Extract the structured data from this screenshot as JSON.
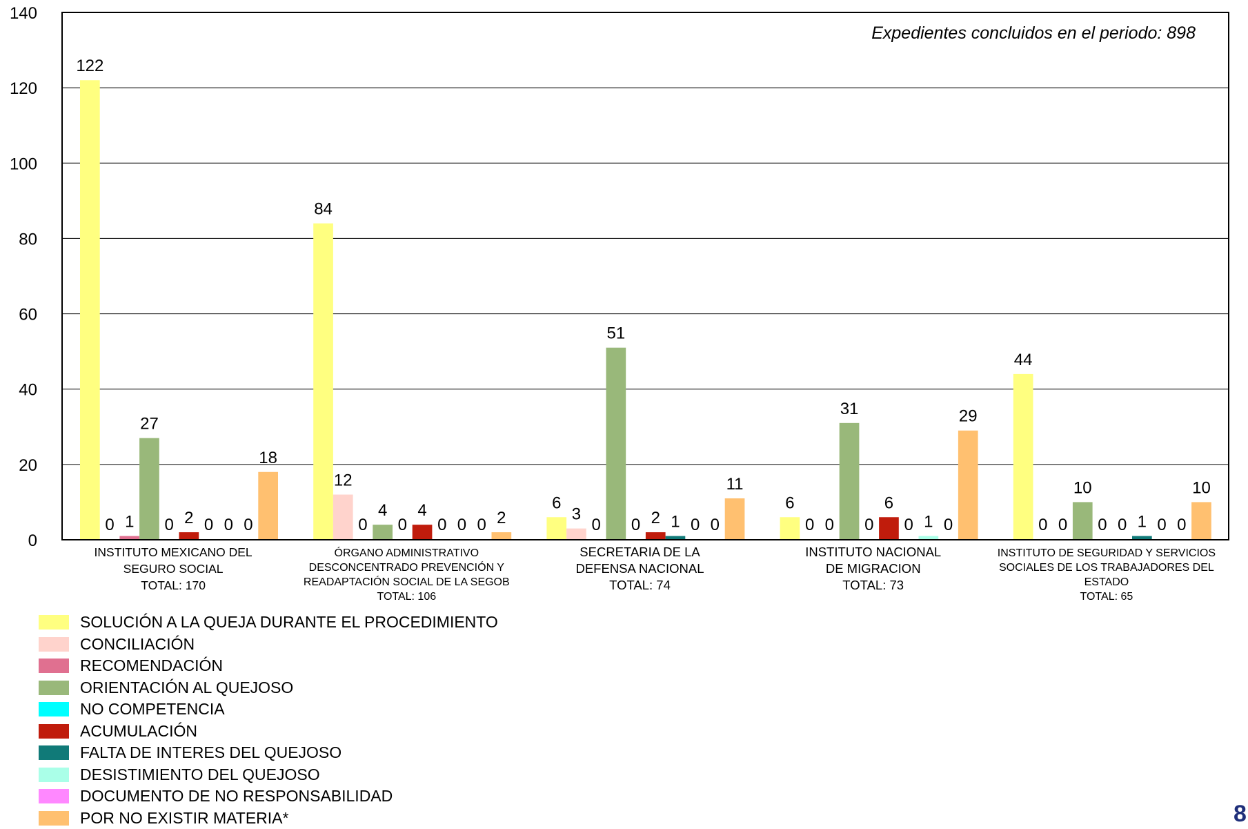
{
  "chart_data": {
    "type": "bar",
    "annotation": "Expedientes concluidos en el periodo:  898",
    "ylim": [
      0,
      140
    ],
    "yticks": [
      0,
      20,
      40,
      60,
      80,
      100,
      120,
      140
    ],
    "grid": true,
    "legend_position": "bottom-left",
    "categories": [
      {
        "lines": [
          "INSTITUTO MEXICANO DEL",
          "SEGURO SOCIAL",
          "TOTAL:  170"
        ]
      },
      {
        "lines": [
          "ÓRGANO ADMINISTRATIVO",
          "DESCONCENTRADO PREVENCIÓN Y",
          "READAPTACIÓN SOCIAL DE LA SEGOB",
          "TOTAL:  106"
        ]
      },
      {
        "lines": [
          "SECRETARIA DE LA",
          "DEFENSA NACIONAL",
          "TOTAL:  74"
        ]
      },
      {
        "lines": [
          "INSTITUTO NACIONAL",
          "DE MIGRACION",
          "TOTAL:  73"
        ]
      },
      {
        "lines": [
          "INSTITUTO DE SEGURIDAD Y SERVICIOS",
          "SOCIALES DE LOS TRABAJADORES DEL",
          "ESTADO",
          "TOTAL:  65"
        ]
      }
    ],
    "series": [
      {
        "name": "SOLUCIÓN A LA QUEJA DURANTE EL PROCEDIMIENTO",
        "color": "#ffff80",
        "values": [
          122,
          84,
          6,
          6,
          44
        ]
      },
      {
        "name": "CONCILIACIÓN",
        "color": "#ffd3cc",
        "values": [
          0,
          12,
          3,
          0,
          0
        ]
      },
      {
        "name": "RECOMENDACIÓN",
        "color": "#e07090",
        "values": [
          1,
          0,
          0,
          0,
          0
        ]
      },
      {
        "name": "ORIENTACIÓN AL QUEJOSO",
        "color": "#99b87a",
        "values": [
          27,
          4,
          51,
          31,
          10
        ]
      },
      {
        "name": "NO COMPETENCIA",
        "color": "#00ffff",
        "values": [
          0,
          0,
          0,
          0,
          0
        ]
      },
      {
        "name": "ACUMULACIÓN",
        "color": "#c01c0c",
        "values": [
          2,
          4,
          2,
          6,
          0
        ]
      },
      {
        "name": "FALTA DE INTERES DEL QUEJOSO",
        "color": "#107a78",
        "values": [
          0,
          0,
          1,
          0,
          1
        ]
      },
      {
        "name": "DESISTIMIENTO DEL QUEJOSO",
        "color": "#aaffe8",
        "values": [
          0,
          0,
          0,
          1,
          0
        ]
      },
      {
        "name": "DOCUMENTO DE NO RESPONSABILIDAD",
        "color": "#ff88ff",
        "values": [
          0,
          0,
          0,
          0,
          0
        ]
      },
      {
        "name": "POR NO EXISTIR MATERIA*",
        "color": "#ffc070",
        "values": [
          18,
          2,
          11,
          29,
          10
        ]
      }
    ]
  },
  "page_number": "8"
}
